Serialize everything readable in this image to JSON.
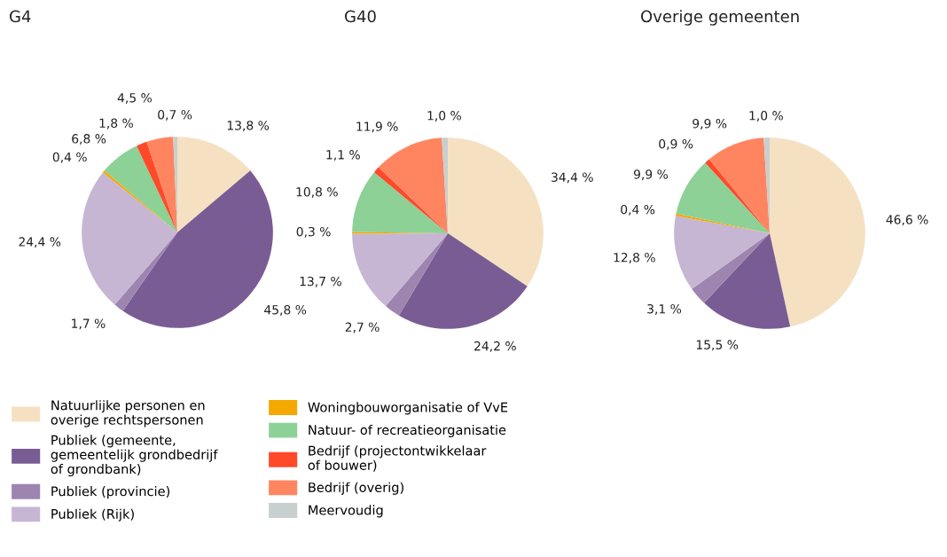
{
  "chart_data": [
    {
      "type": "pie",
      "title": "G4",
      "legend": "bottom",
      "categories": [
        "Natuurlijke personen en\noverige rechtspersonen",
        "Publiek (gemeente,\ngemeentelijk grondbedrijf\nof grondbank)",
        "Publiek (provincie)",
        "Publiek (Rijk)",
        "Woningbouworganisatie of VvE",
        "Natuur- of recreatieorganisatie",
        "Bedrijf (projectontwikkelaar\nof bouwer)",
        "Bedrijf (overig)",
        "Meervoudig"
      ],
      "colors": [
        "#f5e1c2",
        "#7a5c94",
        "#9d85b0",
        "#c6b6d3",
        "#f5a800",
        "#8dd196",
        "#ff4a2a",
        "#ff8560",
        "#c8cfcf"
      ],
      "values": [
        13.8,
        45.8,
        1.7,
        24.4,
        0.4,
        6.8,
        1.8,
        4.5,
        0.7
      ],
      "value_labels": [
        "13,8 %",
        "45,8 %",
        "1,7 %",
        "24,4 %",
        "0,4 %",
        "6,8 %",
        "1,8 %",
        "4,5 %",
        "0,7 %"
      ]
    },
    {
      "type": "pie",
      "title": "G40",
      "categories": [
        null,
        null,
        null,
        null,
        null,
        null,
        null,
        null,
        null
      ],
      "colors": [
        "#f5e1c2",
        "#7a5c94",
        "#9d85b0",
        "#c6b6d3",
        "#f5a800",
        "#8dd196",
        "#ff4a2a",
        "#ff8560",
        "#c8cfcf"
      ],
      "values": [
        34.4,
        24.2,
        2.7,
        13.7,
        0.3,
        10.8,
        1.1,
        11.9,
        1.0
      ],
      "value_labels": [
        "34,4 %",
        "24,2 %",
        "2,7 %",
        "13,7 %",
        "0,3 %",
        "10,8 %",
        "1,1 %",
        "11,9 %",
        "1,0 %"
      ]
    },
    {
      "type": "pie",
      "title": "Overige gemeenten",
      "categories": [
        null,
        null,
        null,
        null,
        null,
        null,
        null,
        null,
        null
      ],
      "colors": [
        "#f5e1c2",
        "#7a5c94",
        "#9d85b0",
        "#c6b6d3",
        "#f5a800",
        "#8dd196",
        "#ff4a2a",
        "#ff8560",
        "#c8cfcf"
      ],
      "values": [
        46.6,
        15.5,
        3.1,
        12.8,
        0.4,
        9.9,
        0.9,
        9.9,
        1.0
      ],
      "value_labels": [
        "46,6 %",
        "15,5 %",
        "3,1 %",
        "12,8 %",
        "0,4 %",
        "9,9 %",
        "0,9 %",
        "9,9 %",
        "1,0 %"
      ]
    }
  ]
}
